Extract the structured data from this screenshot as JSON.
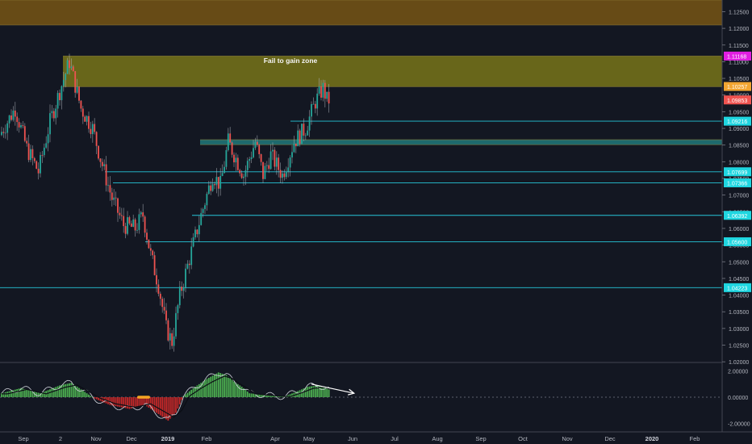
{
  "chart_data": {
    "type": "candlestick",
    "instrument_panel": {
      "y_axis_ticks": [
        "1.12500",
        "1.12000",
        "1.11500",
        "1.11000",
        "1.10500",
        "1.10000",
        "1.09500",
        "1.09000",
        "1.08500",
        "1.08000",
        "1.07500",
        "1.07000",
        "1.06500",
        "1.06000",
        "1.05500",
        "1.05000",
        "1.04500",
        "1.04000",
        "1.03500",
        "1.03000",
        "1.02500",
        "1.02000"
      ],
      "y_range": [
        1.0198,
        1.1285
      ],
      "x_axis_labels": [
        "Sep",
        "2",
        "Nov",
        "Dec",
        "2019",
        "Feb",
        "Apr",
        "May",
        "Jun",
        "Jul",
        "Aug",
        "Sep",
        "Oct",
        "Nov",
        "Dec",
        "2020",
        "Feb"
      ],
      "annotation_text": "Fail to gain zone",
      "zones": [
        {
          "label": "top-zone",
          "y_from": 1.121,
          "y_to": 1.1285,
          "color": "#6b4e16"
        },
        {
          "label": "fail-to-gain-zone",
          "y_from": 1.1025,
          "y_to": 1.1117,
          "color": "#6d6a1a"
        },
        {
          "label": "support-zone",
          "y_from": 1.0851,
          "y_to": 1.0866,
          "color": "#1f6e72"
        }
      ],
      "price_tags": [
        {
          "text": "1.11168",
          "value": 1.11168,
          "bg": "#e11ee1"
        },
        {
          "text": "1.10257",
          "value": 1.10257,
          "bg": "#f2a531"
        },
        {
          "text": "1.09853",
          "value": 1.09853,
          "bg": "#ef5350"
        },
        {
          "text": "1.09216",
          "value": 1.09216,
          "bg": "#1fd6e0"
        },
        {
          "text": "1.07699",
          "value": 1.07699,
          "bg": "#1fd6e0"
        },
        {
          "text": "1.07366",
          "value": 1.07366,
          "bg": "#1fd6e0"
        },
        {
          "text": "1.06392",
          "value": 1.06392,
          "bg": "#1fd6e0"
        },
        {
          "text": "1.05600",
          "value": 1.056,
          "bg": "#1fd6e0"
        },
        {
          "text": "1.04223",
          "value": 1.04223,
          "bg": "#1fd6e0"
        }
      ],
      "horizontal_levels": [
        1.09216,
        1.07699,
        1.07366,
        1.06392,
        1.056,
        1.04223
      ],
      "candle_count": 170,
      "price_path": [
        [
          0,
          1.088
        ],
        [
          8,
          1.096
        ],
        [
          14,
          1.084
        ],
        [
          20,
          1.077
        ],
        [
          26,
          1.092
        ],
        [
          32,
          1.103
        ],
        [
          36,
          1.11
        ],
        [
          42,
          1.096
        ],
        [
          48,
          1.09
        ],
        [
          52,
          1.081
        ],
        [
          58,
          1.069
        ],
        [
          64,
          1.061
        ],
        [
          70,
          1.06
        ],
        [
          74,
          1.064
        ],
        [
          78,
          1.052
        ],
        [
          82,
          1.043
        ],
        [
          86,
          1.03
        ],
        [
          89,
          1.026
        ],
        [
          93,
          1.04
        ],
        [
          98,
          1.051
        ],
        [
          104,
          1.064
        ],
        [
          110,
          1.076
        ],
        [
          114,
          1.073
        ],
        [
          118,
          1.086
        ],
        [
          122,
          1.081
        ],
        [
          126,
          1.076
        ],
        [
          132,
          1.086
        ],
        [
          136,
          1.076
        ],
        [
          140,
          1.082
        ],
        [
          146,
          1.076
        ],
        [
          152,
          1.086
        ],
        [
          158,
          1.09
        ],
        [
          163,
          1.098
        ],
        [
          167,
          1.102
        ],
        [
          169,
          1.0985
        ]
      ]
    },
    "oscillator_panel": {
      "y_axis_ticks": [
        "2.00000",
        "0.00000",
        "-2.00000"
      ],
      "y_range": [
        -2.6,
        2.6
      ],
      "histogram_path": [
        [
          0,
          0.3
        ],
        [
          10,
          0.7
        ],
        [
          20,
          0.3
        ],
        [
          30,
          0.9
        ],
        [
          36,
          1.1
        ],
        [
          42,
          0.5
        ],
        [
          48,
          -0.1
        ],
        [
          56,
          -0.6
        ],
        [
          66,
          -0.9
        ],
        [
          74,
          -0.6
        ],
        [
          80,
          -1.2
        ],
        [
          86,
          -1.8
        ],
        [
          90,
          -1.2
        ],
        [
          94,
          0.1
        ],
        [
          100,
          0.8
        ],
        [
          106,
          1.4
        ],
        [
          112,
          1.9
        ],
        [
          116,
          1.7
        ],
        [
          120,
          1.2
        ],
        [
          124,
          0.8
        ],
        [
          128,
          0.3
        ],
        [
          134,
          0.2
        ],
        [
          140,
          0.1
        ],
        [
          146,
          0.05
        ],
        [
          152,
          0.4
        ],
        [
          158,
          0.8
        ],
        [
          164,
          0.9
        ],
        [
          169,
          0.6
        ]
      ],
      "signal_marker_value": 0.0,
      "arrow": {
        "from": [
          160,
          1.0
        ],
        "to": [
          182,
          0.3
        ],
        "color": "#ffffff"
      }
    }
  }
}
